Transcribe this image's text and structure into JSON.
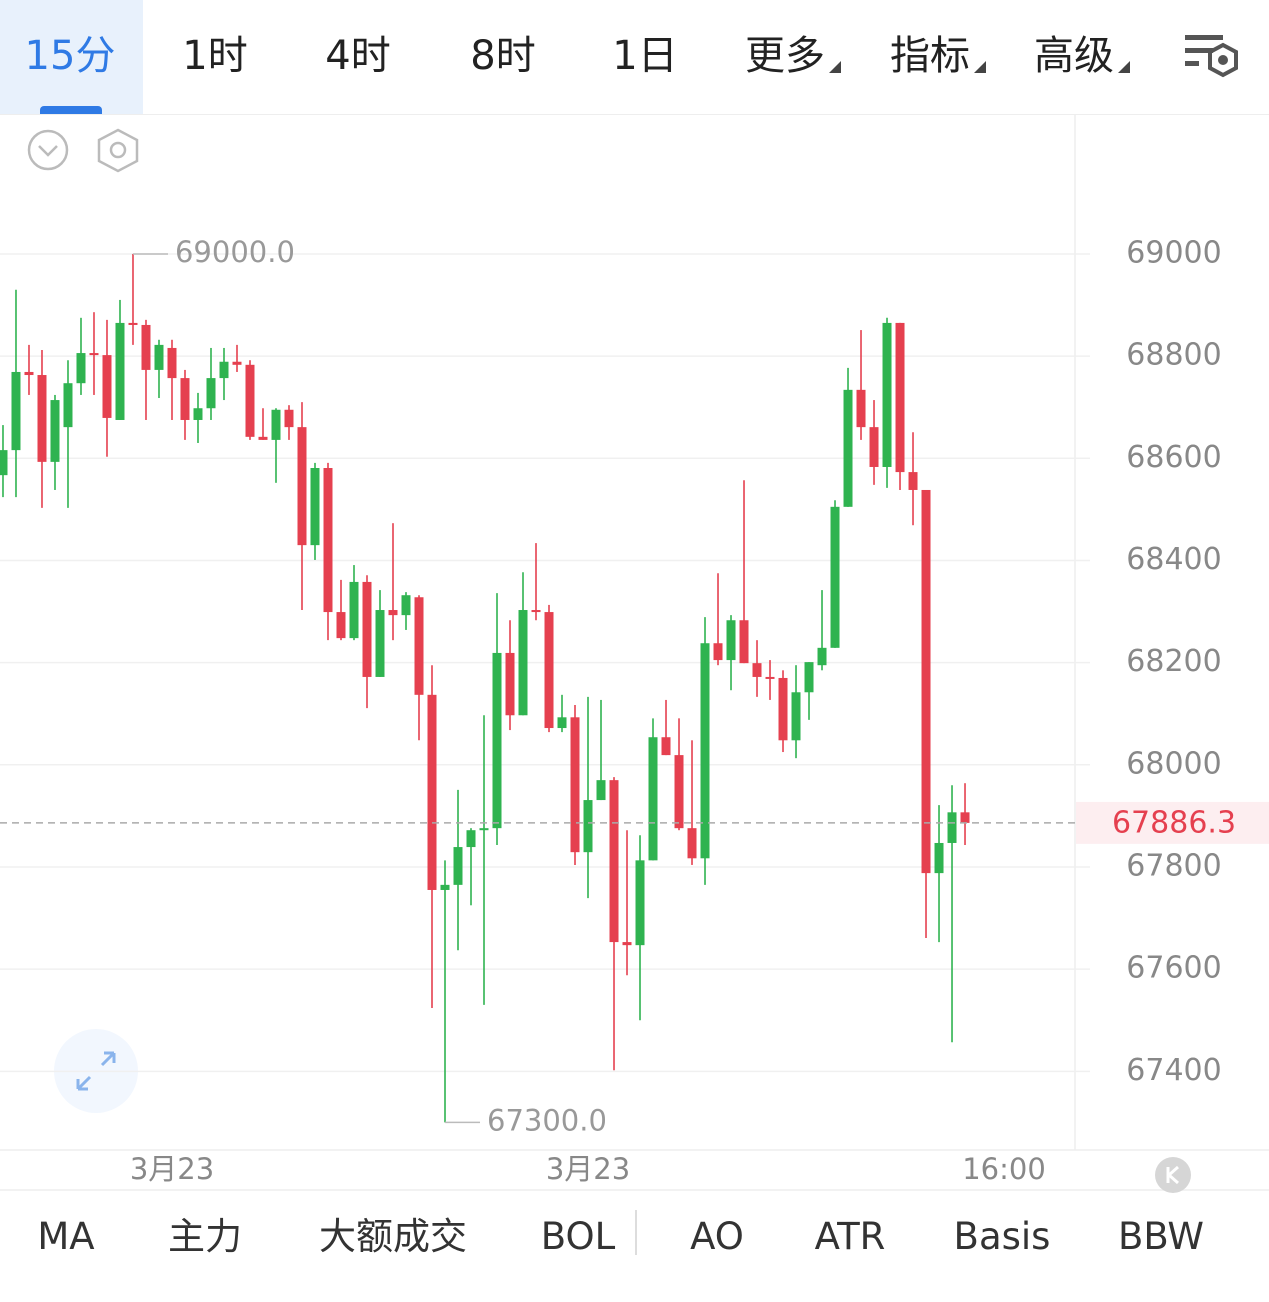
{
  "tabs": [
    "15分",
    "1时",
    "4时",
    "8时",
    "1日",
    "更多",
    "指标",
    "高级"
  ],
  "indicator_tabs": [
    "MA",
    "主力",
    "大额成交",
    "BOL",
    "AO",
    "ATR",
    "Basis",
    "BBW"
  ],
  "chart_data": {
    "type": "candlestick",
    "up_color": "#2fb350",
    "down_color": "#e5404f",
    "open": [
      68567,
      68616,
      68769,
      68763,
      68593,
      68661,
      68747,
      68806,
      68802,
      68675,
      68865,
      68861,
      68773,
      68816,
      68757,
      68675,
      68698,
      68757,
      68789,
      68783,
      68642,
      68636,
      68695,
      68661,
      68430,
      68581,
      68299,
      68248,
      68358,
      68172,
      68303,
      68293,
      68328,
      68137,
      67755,
      67765,
      67839,
      67872,
      67876,
      68219,
      68097,
      68303,
      68299,
      68072,
      68093,
      67829,
      67931,
      67970,
      67653,
      67647,
      67813,
      68054,
      68019,
      67876,
      67817,
      68238,
      68205,
      68283,
      68199,
      68172,
      68170,
      68048,
      68142,
      68195,
      68229,
      68505,
      68734,
      68661,
      68583,
      68865,
      68573,
      68538,
      67788,
      67847,
      67907
    ],
    "close": [
      68616,
      68769,
      68763,
      68593,
      68714,
      68747,
      68806,
      68802,
      68679,
      68865,
      68861,
      68773,
      68822,
      68757,
      68675,
      68698,
      68757,
      68789,
      68783,
      68642,
      68636,
      68695,
      68661,
      68430,
      68581,
      68299,
      68248,
      68358,
      68172,
      68303,
      68293,
      68332,
      68137,
      67755,
      67765,
      67839,
      67872,
      67876,
      68219,
      68097,
      68303,
      68299,
      68072,
      68093,
      67829,
      67931,
      67970,
      67653,
      67647,
      67813,
      68054,
      68019,
      67876,
      67817,
      68238,
      68205,
      68283,
      68199,
      68172,
      68170,
      68048,
      68142,
      68201,
      68229,
      68505,
      68734,
      68661,
      68583,
      68865,
      68573,
      68538,
      67788,
      67847,
      67907,
      67886.3
    ],
    "high": [
      68665,
      68930,
      68822,
      68812,
      68724,
      68792,
      68875,
      68886,
      68871,
      68910,
      69000,
      68871,
      68832,
      68832,
      68773,
      68728,
      68816,
      68816,
      68822,
      68792,
      68698,
      68698,
      68704,
      68710,
      68591,
      68591,
      68362,
      68391,
      68371,
      68342,
      68473,
      68338,
      68332,
      68195,
      67813,
      67951,
      67876,
      68097,
      68336,
      68283,
      68377,
      68434,
      68313,
      68137,
      68117,
      68133,
      68127,
      67976,
      67872,
      67862,
      68091,
      68127,
      68091,
      68048,
      68289,
      68375,
      68293,
      68557,
      68244,
      68205,
      68185,
      68195,
      68201,
      68342,
      68518,
      68777,
      68851,
      68714,
      68875,
      68865,
      68651,
      68538,
      67921,
      67960,
      67964
    ],
    "low": [
      68524,
      68524,
      68724,
      68503,
      68538,
      68503,
      68724,
      68724,
      68603,
      68675,
      68822,
      68675,
      68718,
      68675,
      68636,
      68630,
      68675,
      68714,
      68769,
      68636,
      68636,
      68552,
      68636,
      68303,
      68401,
      68244,
      68244,
      68244,
      68111,
      68172,
      68244,
      68264,
      68048,
      67524,
      67300,
      67637,
      67725,
      67530,
      67843,
      68068,
      68097,
      68283,
      68064,
      68064,
      67804,
      67739,
      67931,
      67402,
      67588,
      67500,
      67813,
      68019,
      67872,
      67804,
      67765,
      68195,
      68146,
      68199,
      68133,
      68127,
      68025,
      68013,
      68088,
      68185,
      68229,
      68505,
      68636,
      68548,
      68542,
      68538,
      68469,
      67661,
      67653,
      67457,
      67843
    ],
    "xlim": [
      -0.23,
      82.46
    ],
    "xticks": [
      {
        "value": 13,
        "label": "3月23"
      },
      {
        "value": 45,
        "label": "3月23"
      },
      {
        "value": 77,
        "label": "16:00"
      }
    ],
    "ylim": [
      67246,
      69272
    ],
    "yticks": [
      67400,
      67600,
      67800,
      68000,
      68200,
      68400,
      68600,
      68800,
      69000
    ],
    "grid": true,
    "high_label": {
      "value": 69000,
      "label": "69000.0"
    },
    "low_label": {
      "value": 67300,
      "label": "67300.0"
    },
    "last_price": {
      "value": 67886.3,
      "label": "67886.3"
    }
  }
}
